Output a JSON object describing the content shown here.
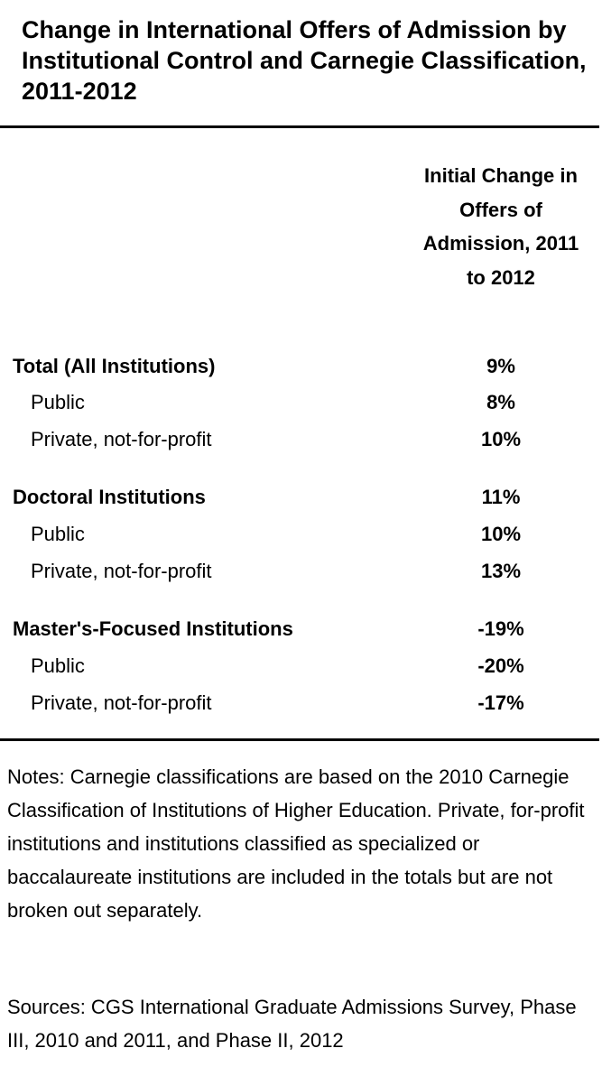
{
  "title": "Change in International Offers of Admission by Institutional Control and Carnegie Classification, 2011-2012",
  "column_header": "Initial Change in Offers of Admission, 2011 to 2012",
  "rows": [
    {
      "label": "Total (All Institutions)",
      "value": "9%",
      "type": "group"
    },
    {
      "label": "Public",
      "value": "8%",
      "type": "sub"
    },
    {
      "label": "Private, not-for-profit",
      "value": "10%",
      "type": "sub"
    },
    {
      "label": "Doctoral Institutions",
      "value": "11%",
      "type": "group"
    },
    {
      "label": "Public",
      "value": "10%",
      "type": "sub"
    },
    {
      "label": "Private, not-for-profit",
      "value": "13%",
      "type": "sub"
    },
    {
      "label": "Master's-Focused Institutions",
      "value": "-19%",
      "type": "group"
    },
    {
      "label": "Public",
      "value": "-20%",
      "type": "sub"
    },
    {
      "label": "Private, not-for-profit",
      "value": "-17%",
      "type": "sub"
    }
  ],
  "notes": "Notes: Carnegie classifications are based on the 2010 Carnegie Classification of Institutions of Higher Education. Private, for-profit institutions and institutions classified as specialized or baccalaureate institutions are included in the totals but are not broken out separately.",
  "sources": "Sources: CGS International Graduate Admissions Survey, Phase III, 2010 and 2011, and Phase II, 2012"
}
